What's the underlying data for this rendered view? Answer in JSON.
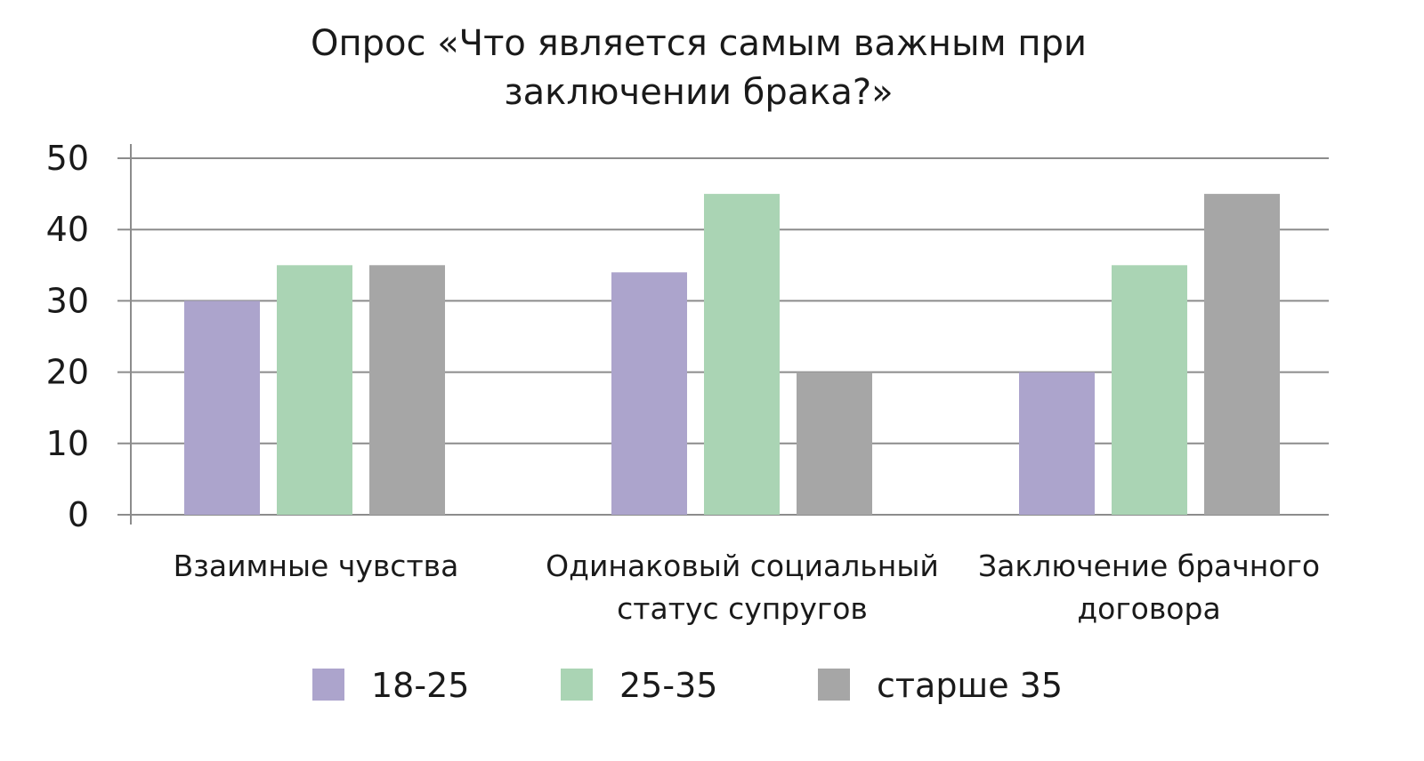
{
  "chart_data": {
    "type": "bar",
    "title": [
      "Опрос «Что является самым важным при",
      "заключении брака?»"
    ],
    "categories": [
      [
        "Взаимные чувства"
      ],
      [
        "Одинаковый социальный",
        "статус супругов"
      ],
      [
        "Заключение брачного",
        "договора"
      ]
    ],
    "series": [
      {
        "name": "18-25",
        "values": [
          30,
          34,
          20
        ],
        "color": "#aca4cc"
      },
      {
        "name": "25-35",
        "values": [
          35,
          45,
          35
        ],
        "color": "#aad4b4"
      },
      {
        "name": "старше 35",
        "values": [
          35,
          20,
          45
        ],
        "color": "#a6a6a6"
      }
    ],
    "ylim": [
      0,
      50
    ],
    "yticks": [
      0,
      10,
      20,
      30,
      40,
      50
    ],
    "grid": true,
    "legend_position": "bottom",
    "gridline_color": "#8c8c8c",
    "xlabel": "",
    "ylabel": ""
  }
}
